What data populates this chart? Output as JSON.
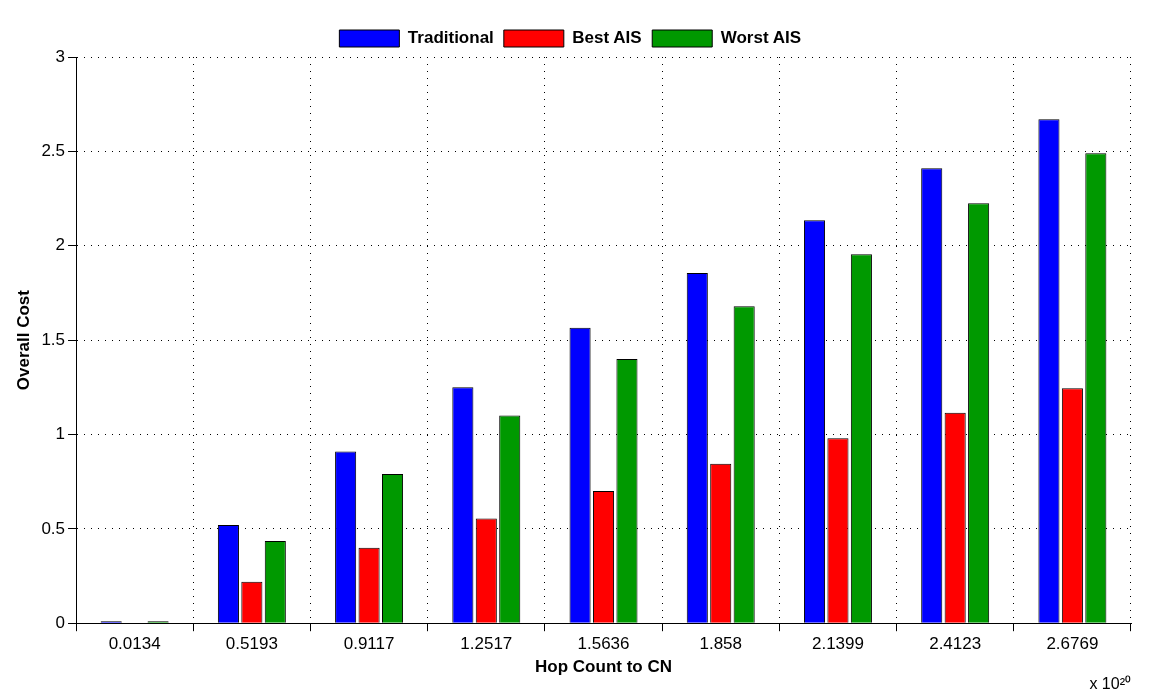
{
  "chart_data": {
    "type": "bar",
    "xlabel": "Hop Count to CN",
    "ylabel": "Overall Cost",
    "categories": [
      "0.0134",
      "0.5193",
      "0.9117",
      "1.2517",
      "1.5636",
      "1.858",
      "2.1399",
      "2.4123",
      "2.6769"
    ],
    "series": [
      {
        "name": "Traditional",
        "color": "#0000ff",
        "values": [
          0.01,
          0.52,
          0.91,
          1.25,
          1.565,
          1.855,
          2.135,
          2.41,
          2.67
        ]
      },
      {
        "name": "Best AIS",
        "color": "#ff0000",
        "values": [
          null,
          0.22,
          0.4,
          0.555,
          0.7,
          0.845,
          0.98,
          1.115,
          1.245
        ]
      },
      {
        "name": "Worst AIS",
        "color": "#009900",
        "values": [
          0.01,
          0.435,
          0.79,
          1.1,
          1.4,
          1.68,
          1.955,
          2.225,
          2.49
        ]
      }
    ],
    "ylim": [
      0,
      3
    ],
    "yticks": [
      0,
      0.5,
      1,
      1.5,
      2,
      2.5,
      3
    ],
    "annotations": [
      "x 10²⁰"
    ],
    "grid": true,
    "legend": "top"
  }
}
